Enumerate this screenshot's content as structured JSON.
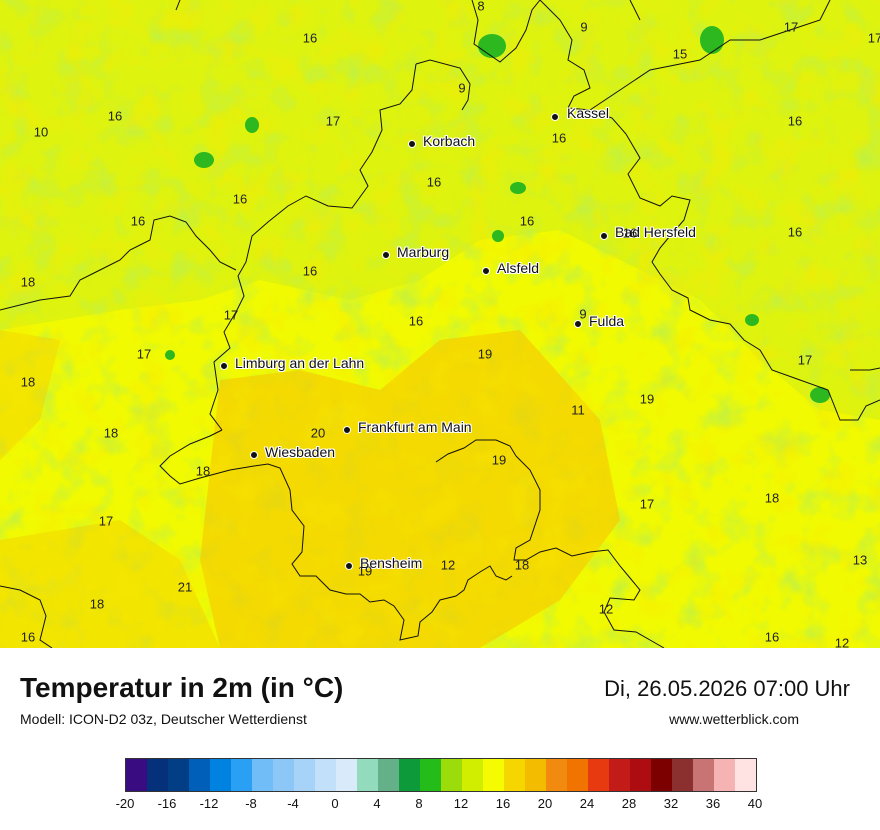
{
  "map": {
    "cities": [
      {
        "name": "Kassel",
        "id": "kassel"
      },
      {
        "name": "Korbach",
        "id": "korbach"
      },
      {
        "name": "Marburg",
        "id": "marburg"
      },
      {
        "name": "Alsfeld",
        "id": "alsfeld"
      },
      {
        "name": "Bad Hersfeld",
        "id": "bad-hersfeld"
      },
      {
        "name": "Fulda",
        "id": "fulda"
      },
      {
        "name": "Limburg an der Lahn",
        "id": "limburg"
      },
      {
        "name": "Frankfurt am Main",
        "id": "frankfurt"
      },
      {
        "name": "Wiesbaden",
        "id": "wiesbaden"
      },
      {
        "name": "Bensheim",
        "id": "bensheim"
      }
    ],
    "values": [
      "8",
      "9",
      "16",
      "17",
      "15",
      "10",
      "16",
      "17",
      "9",
      "16",
      "16",
      "16",
      "16",
      "16",
      "16",
      "16",
      "16",
      "18",
      "16",
      "17",
      "16",
      "9",
      "17",
      "19",
      "17",
      "18",
      "20",
      "11",
      "19",
      "19",
      "18",
      "18",
      "17",
      "17",
      "18",
      "21",
      "19",
      "12",
      "18",
      "13",
      "12",
      "18",
      "16",
      "12",
      "16",
      "17"
    ]
  },
  "legend": {
    "title": "Temperatur in 2m (in °C)",
    "model": "Modell: ICON-D2 03z, Deutscher Wetterdienst",
    "date": "Di, 26.05.2026 07:00 Uhr",
    "site": "www.wetterblick.com",
    "colors": [
      "#3a0c82",
      "#04317a",
      "#013e85",
      "#0060b9",
      "#0082e0",
      "#2aa0f5",
      "#71bdf7",
      "#8dc7f7",
      "#a8d3f8",
      "#c3e0fa",
      "#d9eafb",
      "#92dcbd",
      "#64b088",
      "#0c9a3b",
      "#24bc18",
      "#9ddc0b",
      "#d2ee00",
      "#f5fb00",
      "#f6d600",
      "#f4bc00",
      "#f18a0f",
      "#f17300",
      "#e83a10",
      "#c31b18",
      "#ad0d10",
      "#7c0000",
      "#8c2f2f",
      "#c97474",
      "#f5b3b3",
      "#ffe3e3"
    ],
    "ticks": [
      "-20",
      "-16",
      "-12",
      "-8",
      "-4",
      "0",
      "4",
      "8",
      "12",
      "16",
      "20",
      "24",
      "28",
      "32",
      "36",
      "40"
    ]
  }
}
